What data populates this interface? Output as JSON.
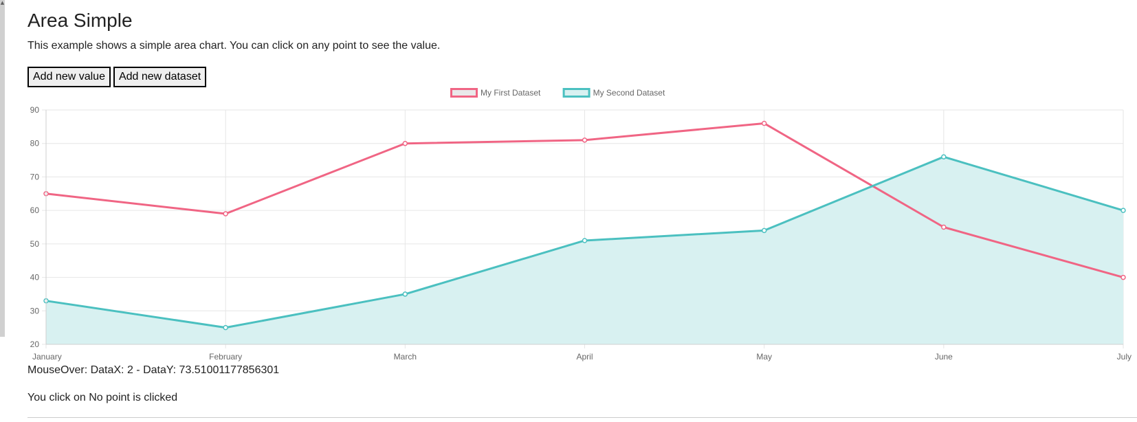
{
  "page": {
    "title": "Area Simple",
    "description": "This example shows a simple area chart. You can click on any point to see the value."
  },
  "toolbar": {
    "add_value_label": "Add new value",
    "add_dataset_label": "Add new dataset"
  },
  "status": {
    "mouseover": "MouseOver: DataX: 2 - DataY: 73.51001177856301",
    "click": "You click on No point is clicked"
  },
  "chart_data": {
    "type": "line",
    "categories": [
      "January",
      "February",
      "March",
      "April",
      "May",
      "June",
      "July"
    ],
    "series": [
      {
        "name": "My First Dataset",
        "values": [
          65,
          59,
          80,
          81,
          86,
          55,
          40
        ],
        "color": "#f06584",
        "fill": false,
        "fill_color": "#e9e9ea"
      },
      {
        "name": "My Second Dataset",
        "values": [
          33,
          25,
          35,
          51,
          54,
          76,
          60
        ],
        "color": "#4bc0c0",
        "fill": true,
        "fill_color": "#d8f1f1"
      }
    ],
    "ylim": [
      20,
      90
    ],
    "yticks": [
      20,
      30,
      40,
      50,
      60,
      70,
      80,
      90
    ],
    "grid": true,
    "legend": "top-center"
  }
}
